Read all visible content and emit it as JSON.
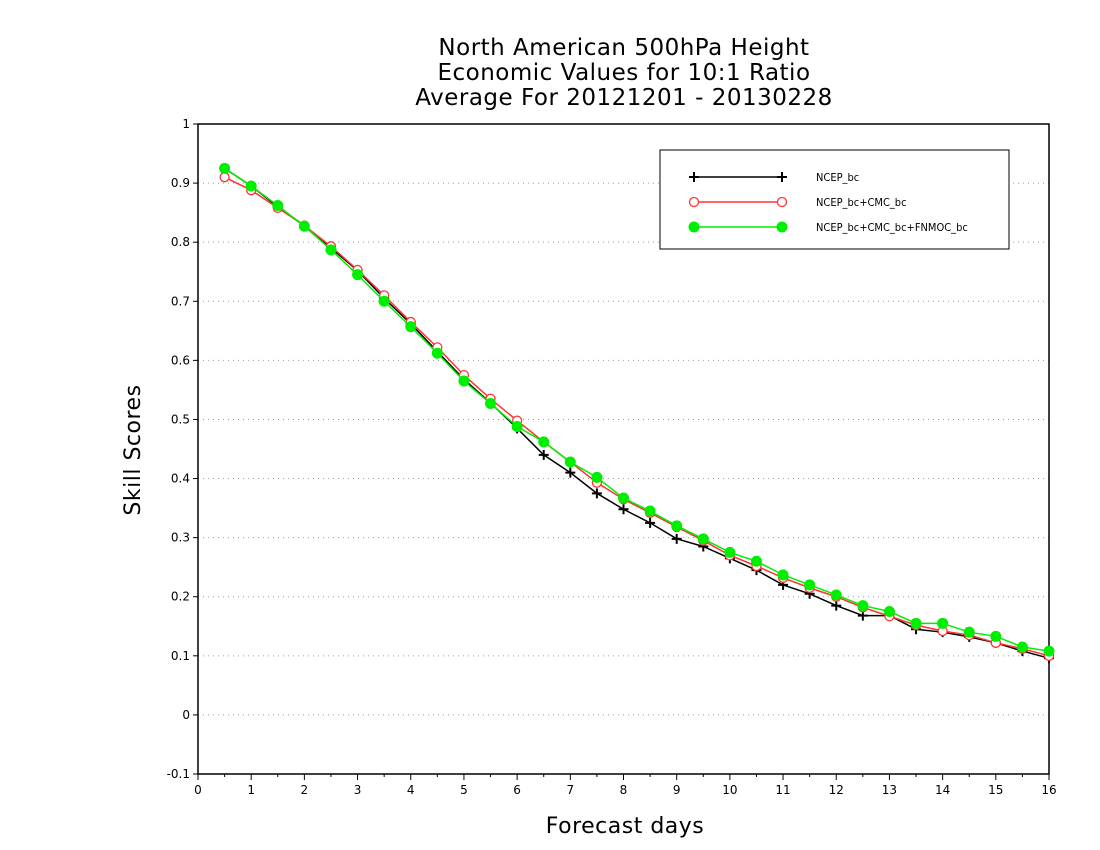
{
  "chart_data": {
    "type": "line",
    "title": [
      "North American 500hPa Height",
      "Economic Values for 10:1 Ratio",
      "Average For 20121201 - 20130228"
    ],
    "xlabel": "Forecast days",
    "ylabel": "Skill Scores",
    "xlim": [
      0,
      16
    ],
    "ylim": [
      -0.1,
      1
    ],
    "xticks": [
      "0",
      "1",
      "2",
      "3",
      "4",
      "5",
      "6",
      "7",
      "8",
      "9",
      "10",
      "11",
      "12",
      "13",
      "14",
      "15",
      "16"
    ],
    "yticks": [
      "-0.1",
      "0",
      "0.1",
      "0.2",
      "0.3",
      "0.4",
      "0.5",
      "0.6",
      "0.7",
      "0.8",
      "0.9",
      "1"
    ],
    "grid": "horizontal dotted",
    "legend_position": "top-right",
    "x": [
      0.5,
      1,
      1.5,
      2,
      2.5,
      3,
      3.5,
      4,
      4.5,
      5,
      5.5,
      6,
      6.5,
      7,
      7.5,
      8,
      8.5,
      9,
      9.5,
      10,
      10.5,
      11,
      11.5,
      12,
      12.5,
      13,
      13.5,
      14,
      14.5,
      15,
      15.5,
      16
    ],
    "series": [
      {
        "name": "NCEP_bc",
        "color": "#000000",
        "marker": "plus",
        "values": [
          0.925,
          0.895,
          0.86,
          0.828,
          0.79,
          0.752,
          0.705,
          0.662,
          0.615,
          0.568,
          0.528,
          0.485,
          0.44,
          0.41,
          0.375,
          0.348,
          0.325,
          0.298,
          0.285,
          0.265,
          0.245,
          0.22,
          0.205,
          0.185,
          0.168,
          0.168,
          0.145,
          0.14,
          0.132,
          0.122,
          0.108,
          0.096
        ]
      },
      {
        "name": "NCEP_bc+CMC_bc",
        "color": "#ff3333",
        "marker": "open-circle",
        "values": [
          0.91,
          0.888,
          0.858,
          0.828,
          0.793,
          0.753,
          0.71,
          0.665,
          0.622,
          0.575,
          0.535,
          0.498,
          0.462,
          0.428,
          0.393,
          0.365,
          0.342,
          0.318,
          0.295,
          0.27,
          0.252,
          0.232,
          0.215,
          0.2,
          0.182,
          0.167,
          0.152,
          0.142,
          0.135,
          0.122,
          0.112,
          0.1
        ]
      },
      {
        "name": "NCEP_bc+CMC_bc+FNMOC_bc",
        "color": "#00ee00",
        "marker": "filled-circle",
        "values": [
          0.925,
          0.895,
          0.862,
          0.827,
          0.787,
          0.745,
          0.7,
          0.657,
          0.612,
          0.565,
          0.527,
          0.488,
          0.462,
          0.428,
          0.402,
          0.367,
          0.345,
          0.32,
          0.298,
          0.275,
          0.26,
          0.237,
          0.22,
          0.203,
          0.185,
          0.175,
          0.155,
          0.155,
          0.14,
          0.133,
          0.115,
          0.108
        ]
      }
    ]
  }
}
